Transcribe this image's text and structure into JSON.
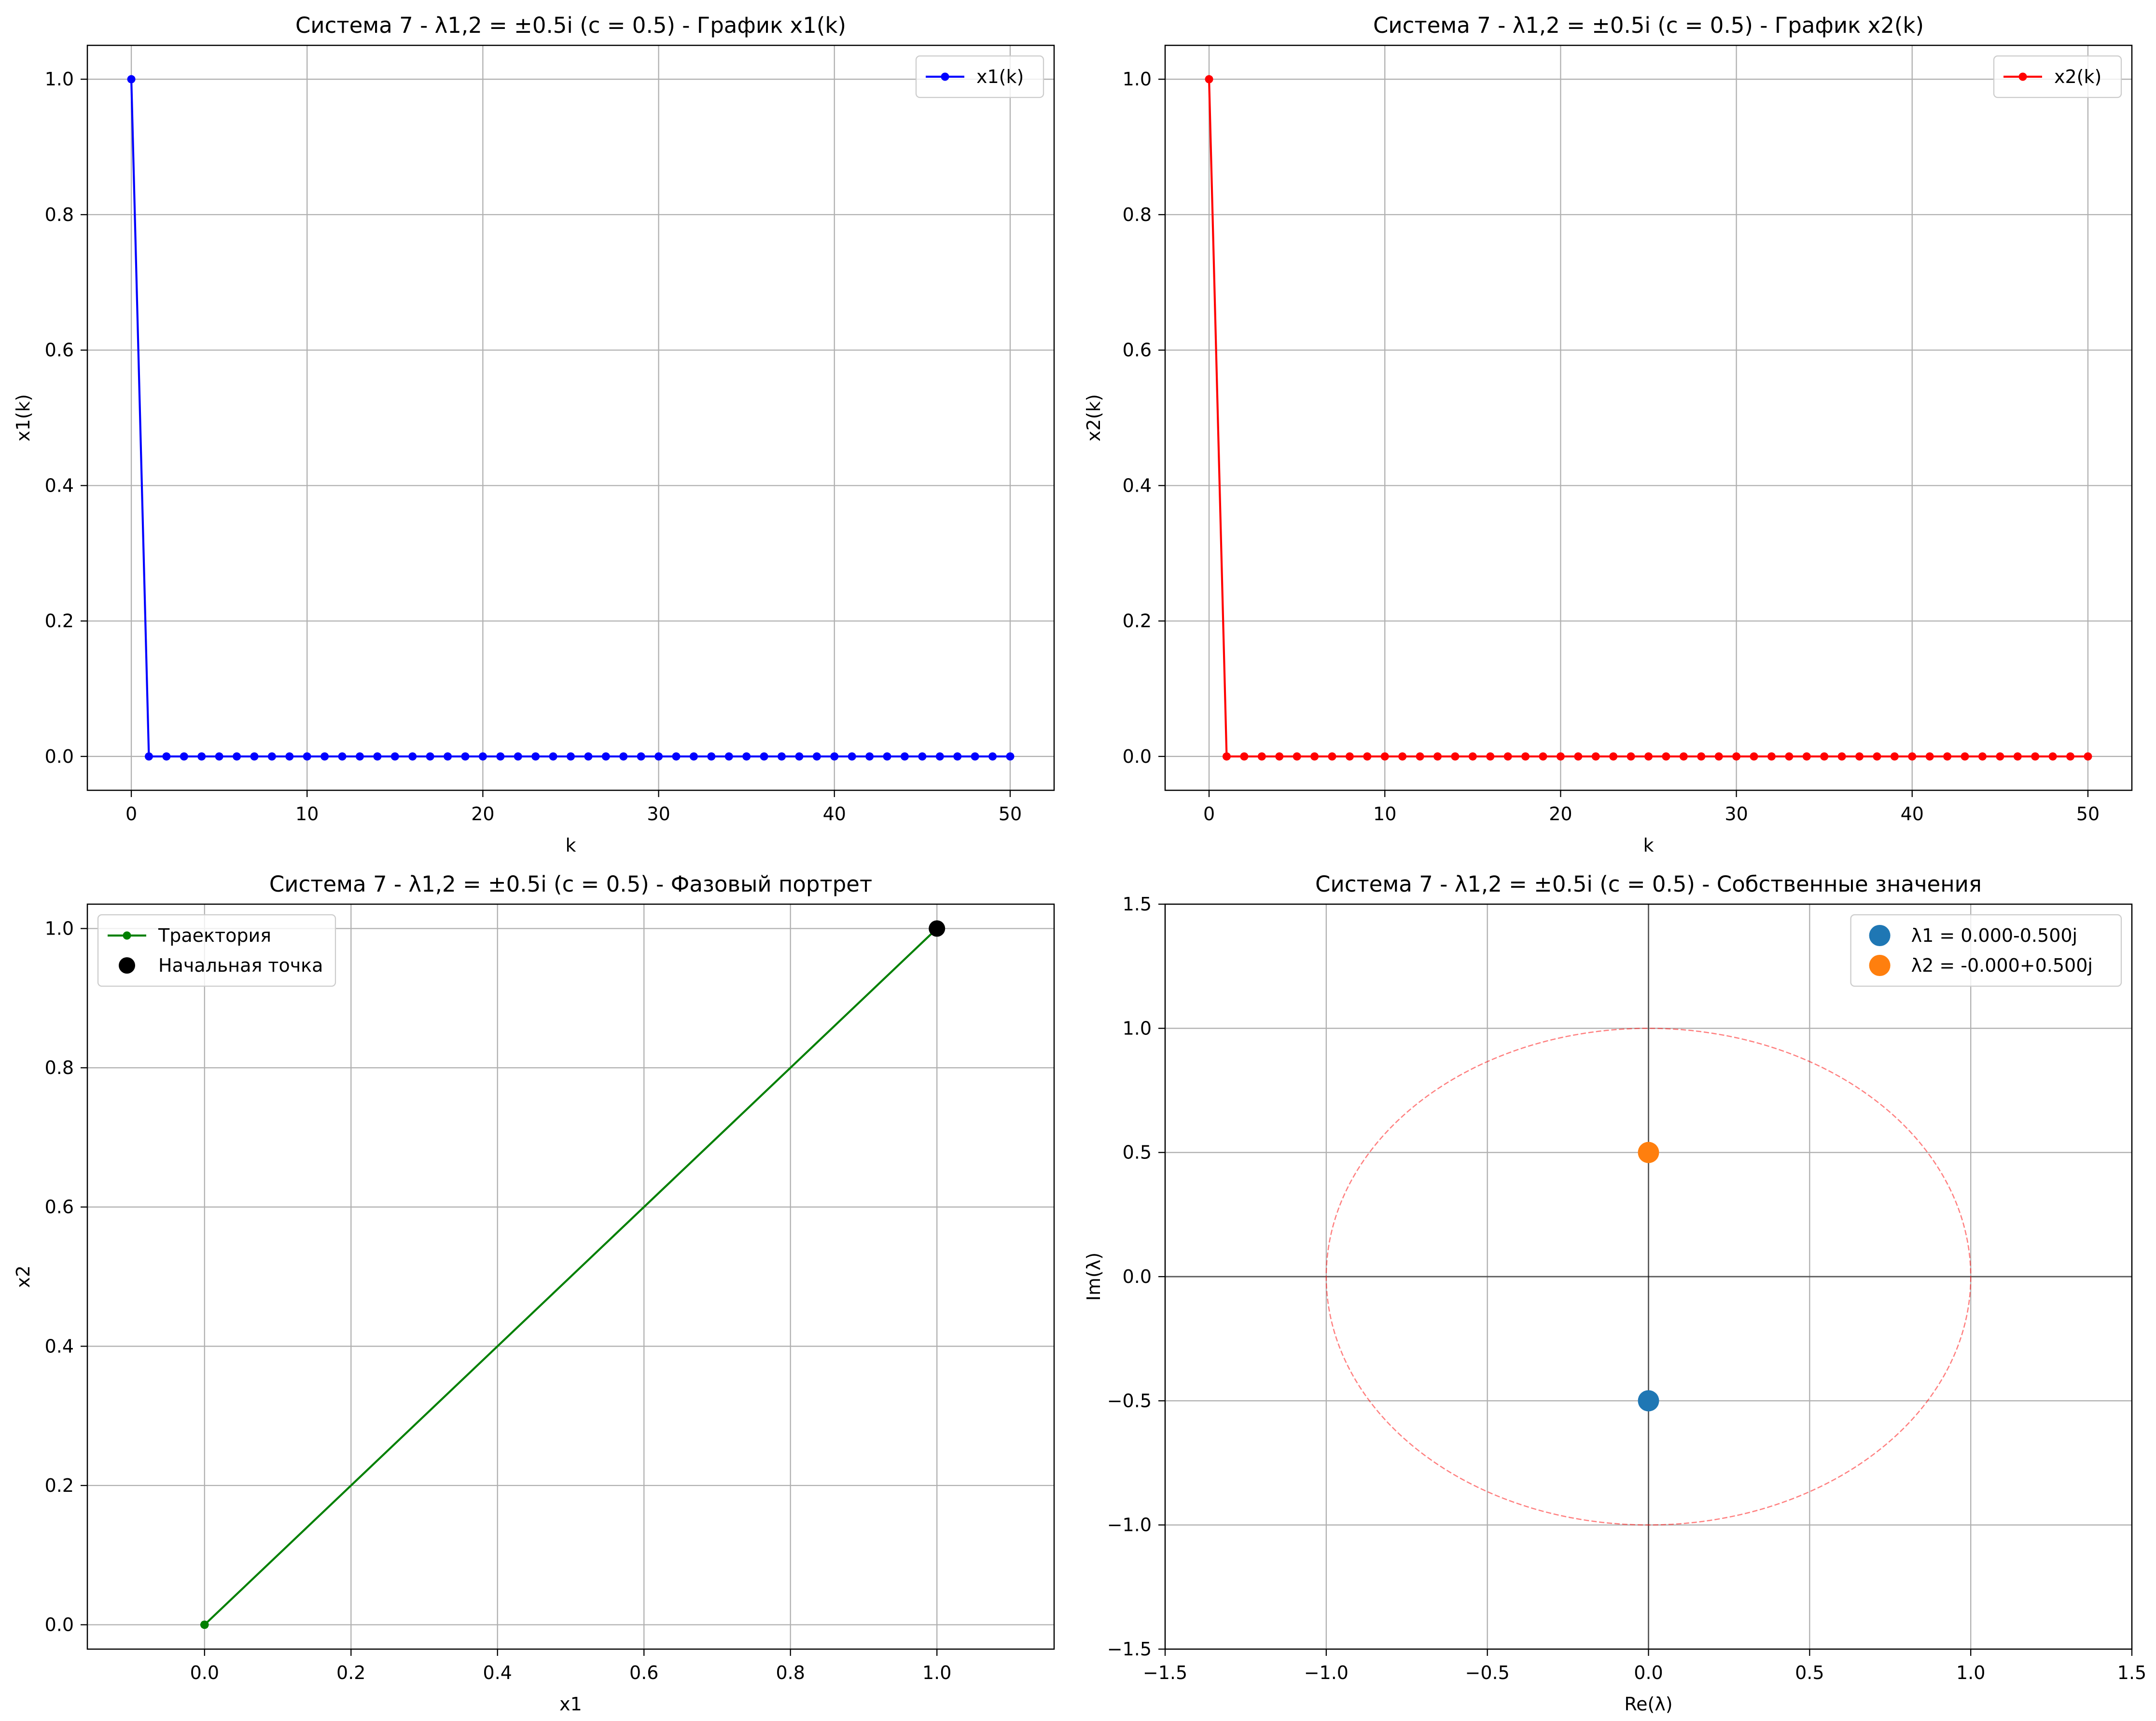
{
  "colors": {
    "x1_line": "#0000ff",
    "x2_line": "#ff0000",
    "phase_line": "#008000",
    "start_point": "#000000",
    "lambda1": "#1f77b4",
    "lambda2": "#ff7f0e",
    "unit_circle": "#ff0000",
    "grid": "#b0b0b0"
  },
  "chart_data": [
    {
      "type": "line",
      "title": "Система 7 - λ1,2 = ±0.5i (c = 0.5) - График x1(k)",
      "xlabel": "k",
      "ylabel": "x1(k)",
      "xlim": [
        -2.5,
        52.5
      ],
      "ylim": [
        -0.05,
        1.05
      ],
      "xticks": [
        0,
        10,
        20,
        30,
        40,
        50
      ],
      "yticks": [
        0.0,
        0.2,
        0.4,
        0.6,
        0.8,
        1.0
      ],
      "xtick_labels": [
        "0",
        "10",
        "20",
        "30",
        "40",
        "50"
      ],
      "ytick_labels": [
        "0.0",
        "0.2",
        "0.4",
        "0.6",
        "0.8",
        "1.0"
      ],
      "grid": true,
      "legend_position": "top-right",
      "series": [
        {
          "name": "x1(k)",
          "color_key": "x1_line",
          "marker": "circle",
          "x": [
            0,
            1,
            2,
            3,
            4,
            5,
            6,
            7,
            8,
            9,
            10,
            11,
            12,
            13,
            14,
            15,
            16,
            17,
            18,
            19,
            20,
            21,
            22,
            23,
            24,
            25,
            26,
            27,
            28,
            29,
            30,
            31,
            32,
            33,
            34,
            35,
            36,
            37,
            38,
            39,
            40,
            41,
            42,
            43,
            44,
            45,
            46,
            47,
            48,
            49,
            50
          ],
          "y": [
            1,
            0,
            0,
            0,
            0,
            0,
            0,
            0,
            0,
            0,
            0,
            0,
            0,
            0,
            0,
            0,
            0,
            0,
            0,
            0,
            0,
            0,
            0,
            0,
            0,
            0,
            0,
            0,
            0,
            0,
            0,
            0,
            0,
            0,
            0,
            0,
            0,
            0,
            0,
            0,
            0,
            0,
            0,
            0,
            0,
            0,
            0,
            0,
            0,
            0,
            0
          ]
        }
      ]
    },
    {
      "type": "line",
      "title": "Система 7 - λ1,2 = ±0.5i (c = 0.5) - График x2(k)",
      "xlabel": "k",
      "ylabel": "x2(k)",
      "xlim": [
        -2.5,
        52.5
      ],
      "ylim": [
        -0.05,
        1.05
      ],
      "xticks": [
        0,
        10,
        20,
        30,
        40,
        50
      ],
      "yticks": [
        0.0,
        0.2,
        0.4,
        0.6,
        0.8,
        1.0
      ],
      "xtick_labels": [
        "0",
        "10",
        "20",
        "30",
        "40",
        "50"
      ],
      "ytick_labels": [
        "0.0",
        "0.2",
        "0.4",
        "0.6",
        "0.8",
        "1.0"
      ],
      "grid": true,
      "legend_position": "top-right",
      "series": [
        {
          "name": "x2(k)",
          "color_key": "x2_line",
          "marker": "circle",
          "x": [
            0,
            1,
            2,
            3,
            4,
            5,
            6,
            7,
            8,
            9,
            10,
            11,
            12,
            13,
            14,
            15,
            16,
            17,
            18,
            19,
            20,
            21,
            22,
            23,
            24,
            25,
            26,
            27,
            28,
            29,
            30,
            31,
            32,
            33,
            34,
            35,
            36,
            37,
            38,
            39,
            40,
            41,
            42,
            43,
            44,
            45,
            46,
            47,
            48,
            49,
            50
          ],
          "y": [
            1,
            0,
            0,
            0,
            0,
            0,
            0,
            0,
            0,
            0,
            0,
            0,
            0,
            0,
            0,
            0,
            0,
            0,
            0,
            0,
            0,
            0,
            0,
            0,
            0,
            0,
            0,
            0,
            0,
            0,
            0,
            0,
            0,
            0,
            0,
            0,
            0,
            0,
            0,
            0,
            0,
            0,
            0,
            0,
            0,
            0,
            0,
            0,
            0,
            0,
            0
          ]
        }
      ]
    },
    {
      "type": "line",
      "title": "Система 7 - λ1,2 = ±0.5i (c = 0.5) - Фазовый портрет",
      "xlabel": "x1",
      "ylabel": "x2",
      "xlim": [
        -0.16,
        1.16
      ],
      "ylim": [
        -0.035,
        1.035
      ],
      "xticks": [
        0.0,
        0.2,
        0.4,
        0.6,
        0.8,
        1.0
      ],
      "yticks": [
        0.0,
        0.2,
        0.4,
        0.6,
        0.8,
        1.0
      ],
      "xtick_labels": [
        "0.0",
        "0.2",
        "0.4",
        "0.6",
        "0.8",
        "1.0"
      ],
      "ytick_labels": [
        "0.0",
        "0.2",
        "0.4",
        "0.6",
        "0.8",
        "1.0"
      ],
      "grid": true,
      "legend_position": "top-left",
      "series": [
        {
          "name": "Траектория",
          "color_key": "phase_line",
          "marker": "circle",
          "x": [
            1,
            0,
            0,
            0,
            0,
            0,
            0,
            0,
            0,
            0,
            0,
            0,
            0,
            0,
            0,
            0,
            0,
            0,
            0,
            0,
            0,
            0,
            0,
            0,
            0,
            0,
            0,
            0,
            0,
            0,
            0,
            0,
            0,
            0,
            0,
            0,
            0,
            0,
            0,
            0,
            0,
            0,
            0,
            0,
            0,
            0,
            0,
            0,
            0,
            0,
            0
          ],
          "y": [
            1,
            0,
            0,
            0,
            0,
            0,
            0,
            0,
            0,
            0,
            0,
            0,
            0,
            0,
            0,
            0,
            0,
            0,
            0,
            0,
            0,
            0,
            0,
            0,
            0,
            0,
            0,
            0,
            0,
            0,
            0,
            0,
            0,
            0,
            0,
            0,
            0,
            0,
            0,
            0,
            0,
            0,
            0,
            0,
            0,
            0,
            0,
            0,
            0,
            0,
            0
          ]
        },
        {
          "name": "Начальная точка",
          "color_key": "start_point",
          "marker": "big-circle",
          "x": [
            1
          ],
          "y": [
            1
          ]
        }
      ]
    },
    {
      "type": "scatter",
      "title": "Система 7 - λ1,2 = ±0.5i (c = 0.5) - Собственные значения",
      "xlabel": "Re(λ)",
      "ylabel": "Im(λ)",
      "xlim": [
        -1.5,
        1.5
      ],
      "ylim": [
        -1.5,
        1.5
      ],
      "xticks": [
        -1.5,
        -1.0,
        -0.5,
        0.0,
        0.5,
        1.0,
        1.5
      ],
      "yticks": [
        -1.5,
        -1.0,
        -0.5,
        0.0,
        0.5,
        1.0,
        1.5
      ],
      "xtick_labels": [
        "−1.5",
        "−1.0",
        "−0.5",
        "0.0",
        "0.5",
        "1.0",
        "1.5"
      ],
      "ytick_labels": [
        "−1.5",
        "−1.0",
        "−0.5",
        "0.0",
        "0.5",
        "1.0",
        "1.5"
      ],
      "grid": true,
      "legend_position": "top-right",
      "unit_circle_radius": 1.0,
      "series": [
        {
          "name": "λ1 = 0.000-0.500j",
          "color_key": "lambda1",
          "x": [
            0.0
          ],
          "y": [
            -0.5
          ]
        },
        {
          "name": "λ2 = -0.000+0.500j",
          "color_key": "lambda2",
          "x": [
            0.0
          ],
          "y": [
            0.5
          ]
        }
      ]
    }
  ]
}
